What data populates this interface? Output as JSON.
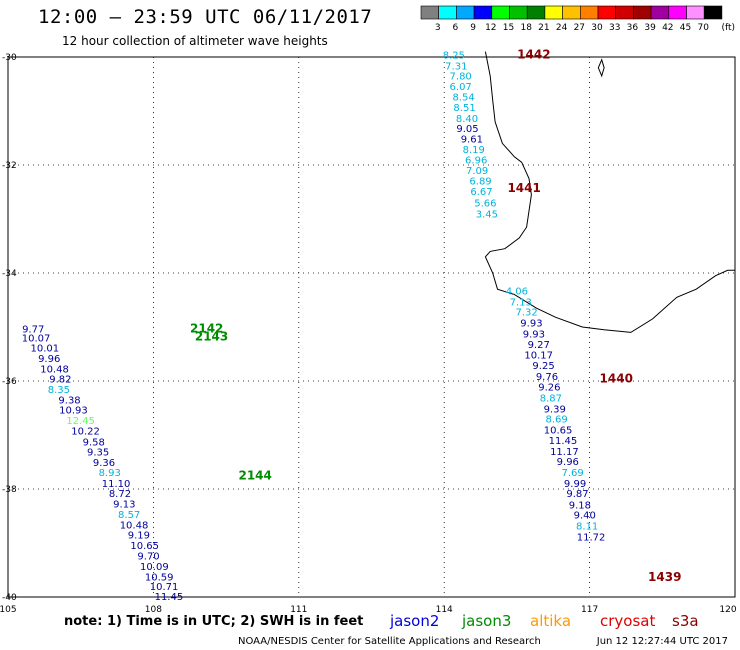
{
  "header": {
    "title": "12:00 – 23:59 UTC 06/11/2017",
    "subtitle": "12 hour collection of altimeter wave heights"
  },
  "legend": {
    "unit": "(ft)",
    "swatches": [
      {
        "color": "#808080",
        "label": "3"
      },
      {
        "color": "#00ffff",
        "label": "6"
      },
      {
        "color": "#00a8ff",
        "label": "9"
      },
      {
        "color": "#0000ff",
        "label": "12"
      },
      {
        "color": "#00ff00",
        "label": "15"
      },
      {
        "color": "#00c000",
        "label": "18"
      },
      {
        "color": "#008000",
        "label": "21"
      },
      {
        "color": "#ffff00",
        "label": "24"
      },
      {
        "color": "#ffc000",
        "label": "27"
      },
      {
        "color": "#ff8000",
        "label": "30"
      },
      {
        "color": "#ff0000",
        "label": "33"
      },
      {
        "color": "#d00000",
        "label": "36"
      },
      {
        "color": "#a00000",
        "label": "39"
      },
      {
        "color": "#a000a0",
        "label": "42"
      },
      {
        "color": "#ff00ff",
        "label": "45"
      },
      {
        "color": "#ff90ff",
        "label": "70"
      },
      {
        "color": "#000000",
        "label": ""
      }
    ]
  },
  "map": {
    "lon_range": [
      105,
      120
    ],
    "lat_range": [
      -40,
      -30
    ],
    "lon_ticks": [
      "105",
      "108",
      "111",
      "114",
      "117",
      "120"
    ],
    "lat_ticks": [
      "-30",
      "-32",
      "-34",
      "-36",
      "-38",
      "-40"
    ],
    "grid": "dotted"
  },
  "colors": {
    "jason2": "#00009c",
    "jason3": "#008c00",
    "altika": "#ff9900",
    "cryosat": "#e00000",
    "s3a": "#8b0000",
    "light_blue": "#00b4dc",
    "light_green": "#60ff60"
  },
  "tracks": [
    {
      "id": "2142",
      "sat": "jason3",
      "label_lon": 109.1,
      "label_lat": -35.1,
      "points": []
    },
    {
      "id": "2143",
      "sat": "jason3",
      "label_lon": 109.2,
      "label_lat": -35.25,
      "points": []
    },
    {
      "id": "2144",
      "sat": "jason3",
      "label_lon": 110.1,
      "label_lat": -37.82,
      "points": []
    },
    {
      "id": "1442",
      "sat": "s3a",
      "label_lon": 115.85,
      "label_lat": -30.03,
      "points": []
    },
    {
      "id": "1441",
      "sat": "s3a",
      "label_lon": 115.65,
      "label_lat": -32.5,
      "points": []
    },
    {
      "id": "1440",
      "sat": "s3a",
      "label_lon": 117.55,
      "label_lat": -36.03,
      "points": []
    },
    {
      "id": "1439",
      "sat": "s3a",
      "label_lon": 118.55,
      "label_lat": -39.7,
      "points": []
    }
  ],
  "track_west": [
    {
      "v": "9.77",
      "c": "jason2",
      "lon": 105.52,
      "lat": -35.1
    },
    {
      "v": "10.07",
      "c": "jason2",
      "lon": 105.58,
      "lat": -35.27
    },
    {
      "v": "10.01",
      "c": "jason2",
      "lon": 105.76,
      "lat": -35.45
    },
    {
      "v": "9.96",
      "c": "jason2",
      "lon": 105.85,
      "lat": -35.65
    },
    {
      "v": "10.48",
      "c": "jason2",
      "lon": 105.96,
      "lat": -35.84
    },
    {
      "v": "9.82",
      "c": "jason2",
      "lon": 106.08,
      "lat": -36.03
    },
    {
      "v": "8.35",
      "c": "light_blue",
      "lon": 106.05,
      "lat": -36.22
    },
    {
      "v": "9.38",
      "c": "jason2",
      "lon": 106.27,
      "lat": -36.42
    },
    {
      "v": "10.93",
      "c": "jason2",
      "lon": 106.35,
      "lat": -36.6
    },
    {
      "v": "12.45",
      "c": "light_green",
      "lon": 106.5,
      "lat": -36.8
    },
    {
      "v": "10.22",
      "c": "jason2",
      "lon": 106.6,
      "lat": -36.99
    },
    {
      "v": "9.58",
      "c": "jason2",
      "lon": 106.77,
      "lat": -37.19
    },
    {
      "v": "9.35",
      "c": "jason2",
      "lon": 106.86,
      "lat": -37.38
    },
    {
      "v": "9.36",
      "c": "jason2",
      "lon": 106.98,
      "lat": -37.57
    },
    {
      "v": "8.93",
      "c": "light_blue",
      "lon": 107.1,
      "lat": -37.76
    },
    {
      "v": "11.10",
      "c": "jason2",
      "lon": 107.23,
      "lat": -37.96
    },
    {
      "v": "8.72",
      "c": "jason2",
      "lon": 107.31,
      "lat": -38.15
    },
    {
      "v": "9.13",
      "c": "jason2",
      "lon": 107.4,
      "lat": -38.34
    },
    {
      "v": "8.57",
      "c": "light_blue",
      "lon": 107.5,
      "lat": -38.54
    },
    {
      "v": "10.48",
      "c": "jason2",
      "lon": 107.6,
      "lat": -38.73
    },
    {
      "v": "9.19",
      "c": "jason2",
      "lon": 107.7,
      "lat": -38.92
    },
    {
      "v": "10.65",
      "c": "jason2",
      "lon": 107.82,
      "lat": -39.11
    },
    {
      "v": "9.70",
      "c": "jason2",
      "lon": 107.9,
      "lat": -39.31
    },
    {
      "v": "10.09",
      "c": "jason2",
      "lon": 108.02,
      "lat": -39.5
    },
    {
      "v": "10.59",
      "c": "jason2",
      "lon": 108.12,
      "lat": -39.69
    },
    {
      "v": "10.71",
      "c": "jason2",
      "lon": 108.22,
      "lat": -39.87
    },
    {
      "v": "11.45",
      "c": "jason2",
      "lon": 108.32,
      "lat": -40.06
    }
  ],
  "track_north": [
    {
      "v": "8.25",
      "c": "light_blue",
      "lon": 114.2,
      "lat": -30.03
    },
    {
      "v": "7.31",
      "c": "light_blue",
      "lon": 114.25,
      "lat": -30.23
    },
    {
      "v": "7.80",
      "c": "light_blue",
      "lon": 114.34,
      "lat": -30.42
    },
    {
      "v": "6.07",
      "c": "light_blue",
      "lon": 114.34,
      "lat": -30.61
    },
    {
      "v": "8.54",
      "c": "light_blue",
      "lon": 114.4,
      "lat": -30.81
    },
    {
      "v": "8.51",
      "c": "light_blue",
      "lon": 114.42,
      "lat": -31.0
    },
    {
      "v": "8.40",
      "c": "light_blue",
      "lon": 114.47,
      "lat": -31.2
    },
    {
      "v": "9.05",
      "c": "jason2",
      "lon": 114.48,
      "lat": -31.39
    },
    {
      "v": "9.61",
      "c": "jason2",
      "lon": 114.57,
      "lat": -31.58
    },
    {
      "v": "8.19",
      "c": "light_blue",
      "lon": 114.61,
      "lat": -31.78
    },
    {
      "v": "6.96",
      "c": "light_blue",
      "lon": 114.66,
      "lat": -31.97
    },
    {
      "v": "7.09",
      "c": "light_blue",
      "lon": 114.68,
      "lat": -32.17
    },
    {
      "v": "6.89",
      "c": "light_blue",
      "lon": 114.75,
      "lat": -32.36
    },
    {
      "v": "6.67",
      "c": "light_blue",
      "lon": 114.77,
      "lat": -32.56
    },
    {
      "v": "5.66",
      "c": "light_blue",
      "lon": 114.85,
      "lat": -32.77
    },
    {
      "v": "3.45",
      "c": "light_blue",
      "lon": 114.88,
      "lat": -32.97
    }
  ],
  "track_south": [
    {
      "v": "4.06",
      "c": "light_blue",
      "lon": 115.5,
      "lat": -34.4
    },
    {
      "v": "7.13",
      "c": "light_blue",
      "lon": 115.58,
      "lat": -34.6
    },
    {
      "v": "7.32",
      "c": "light_blue",
      "lon": 115.7,
      "lat": -34.79
    },
    {
      "v": "9.93",
      "c": "jason2",
      "lon": 115.8,
      "lat": -34.99
    },
    {
      "v": "9.93",
      "c": "jason2",
      "lon": 115.85,
      "lat": -35.19
    },
    {
      "v": "9.27",
      "c": "jason2",
      "lon": 115.95,
      "lat": -35.39
    },
    {
      "v": "10.17",
      "c": "jason2",
      "lon": 115.95,
      "lat": -35.58
    },
    {
      "v": "9.25",
      "c": "jason2",
      "lon": 116.05,
      "lat": -35.78
    },
    {
      "v": "9.76",
      "c": "jason2",
      "lon": 116.12,
      "lat": -35.98
    },
    {
      "v": "9.26",
      "c": "jason2",
      "lon": 116.17,
      "lat": -36.18
    },
    {
      "v": "8.87",
      "c": "light_blue",
      "lon": 116.2,
      "lat": -36.38
    },
    {
      "v": "9.39",
      "c": "jason2",
      "lon": 116.28,
      "lat": -36.58
    },
    {
      "v": "8.69",
      "c": "light_blue",
      "lon": 116.32,
      "lat": -36.77
    },
    {
      "v": "10.65",
      "c": "jason2",
      "lon": 116.35,
      "lat": -36.97
    },
    {
      "v": "11.45",
      "c": "jason2",
      "lon": 116.45,
      "lat": -37.17
    },
    {
      "v": "11.17",
      "c": "jason2",
      "lon": 116.48,
      "lat": -37.37
    },
    {
      "v": "9.96",
      "c": "jason2",
      "lon": 116.55,
      "lat": -37.56
    },
    {
      "v": "7.69",
      "c": "light_blue",
      "lon": 116.65,
      "lat": -37.76
    },
    {
      "v": "9.99",
      "c": "jason2",
      "lon": 116.7,
      "lat": -37.96
    },
    {
      "v": "9.87",
      "c": "jason2",
      "lon": 116.75,
      "lat": -38.15
    },
    {
      "v": "9.18",
      "c": "jason2",
      "lon": 116.8,
      "lat": -38.36
    },
    {
      "v": "9.40",
      "c": "jason2",
      "lon": 116.9,
      "lat": -38.55
    },
    {
      "v": "8.11",
      "c": "light_blue",
      "lon": 116.95,
      "lat": -38.75
    },
    {
      "v": "11.72",
      "c": "jason2",
      "lon": 117.03,
      "lat": -38.95
    }
  ],
  "footer": {
    "note": "note: 1) Time is in UTC; 2) SWH is in feet",
    "sats": [
      {
        "label": "jason2",
        "color": "#0000dd"
      },
      {
        "label": "jason3",
        "color": "#008c00"
      },
      {
        "label": "altika",
        "color": "#ff9900"
      },
      {
        "label": "cryosat",
        "color": "#e00000"
      },
      {
        "label": "s3a",
        "color": "#8b0000"
      }
    ],
    "credit": "NOAA/NESDIS Center for Satellite Applications and Research",
    "timestamp": "Jun 12 12:27:44 UTC 2017"
  }
}
